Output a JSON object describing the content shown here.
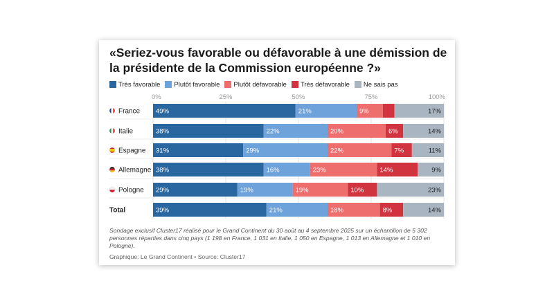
{
  "title": "«Seriez-vous favorable ou défavorable à une démission de la présidente de la Commission européenne ?»",
  "colors": [
    "#2a67a0",
    "#6ea2db",
    "#ee6e6e",
    "#d1343f",
    "#a9b6c2"
  ],
  "chart_data": {
    "type": "bar",
    "orientation": "horizontal",
    "stacked": true,
    "title": "«Seriez-vous favorable ou défavorable à une démission de la présidente de la Commission européenne ?»",
    "xlim": [
      0,
      100
    ],
    "x_ticks": [
      "0%",
      "25%",
      "50%",
      "75%",
      "100%"
    ],
    "categories": [
      {
        "label": "France",
        "flag": "france-flag",
        "bold": false
      },
      {
        "label": "Italie",
        "flag": "italy-flag",
        "bold": false
      },
      {
        "label": "Espagne",
        "flag": "spain-flag",
        "bold": false
      },
      {
        "label": "Allemagne",
        "flag": "germany-flag",
        "bold": false
      },
      {
        "label": "Pologne",
        "flag": "poland-flag",
        "bold": false
      },
      {
        "label": "Total",
        "flag": "",
        "bold": true
      }
    ],
    "series": [
      {
        "name": "Très favorable",
        "values": [
          49,
          38,
          31,
          38,
          29,
          39
        ]
      },
      {
        "name": "Plutôt favorable",
        "values": [
          21,
          22,
          29,
          16,
          19,
          21
        ]
      },
      {
        "name": "Plutôt défavorable",
        "values": [
          9,
          20,
          22,
          23,
          19,
          18
        ]
      },
      {
        "name": "Très défavorable",
        "values": [
          4,
          6,
          7,
          14,
          10,
          8
        ]
      },
      {
        "name": "Ne sais pas",
        "values": [
          17,
          14,
          11,
          9,
          23,
          14
        ]
      }
    ],
    "data_labels": [
      [
        "49%",
        "21%",
        "9%",
        "",
        "17%"
      ],
      [
        "38%",
        "22%",
        "20%",
        "6%",
        "14%"
      ],
      [
        "31%",
        "29%",
        "22%",
        "7%",
        "11%"
      ],
      [
        "38%",
        "16%",
        "23%",
        "14%",
        "9%"
      ],
      [
        "29%",
        "19%",
        "19%",
        "10%",
        "23%"
      ],
      [
        "39%",
        "21%",
        "18%",
        "8%",
        "14%"
      ]
    ]
  },
  "footnote": "Sondage exclusif Cluster17 réalisé pour le Grand Continent du 30 août au 4 septembre 2025 sur un échantillon de 5 302 personnes réparties dans cinq pays (1 198 en France, 1 031 en Italie, 1 050 en Espagne, 1 013 en Allemagne et 1 010 en Pologne).",
  "source": "Graphique: Le Grand Continent • Source: Cluster17"
}
